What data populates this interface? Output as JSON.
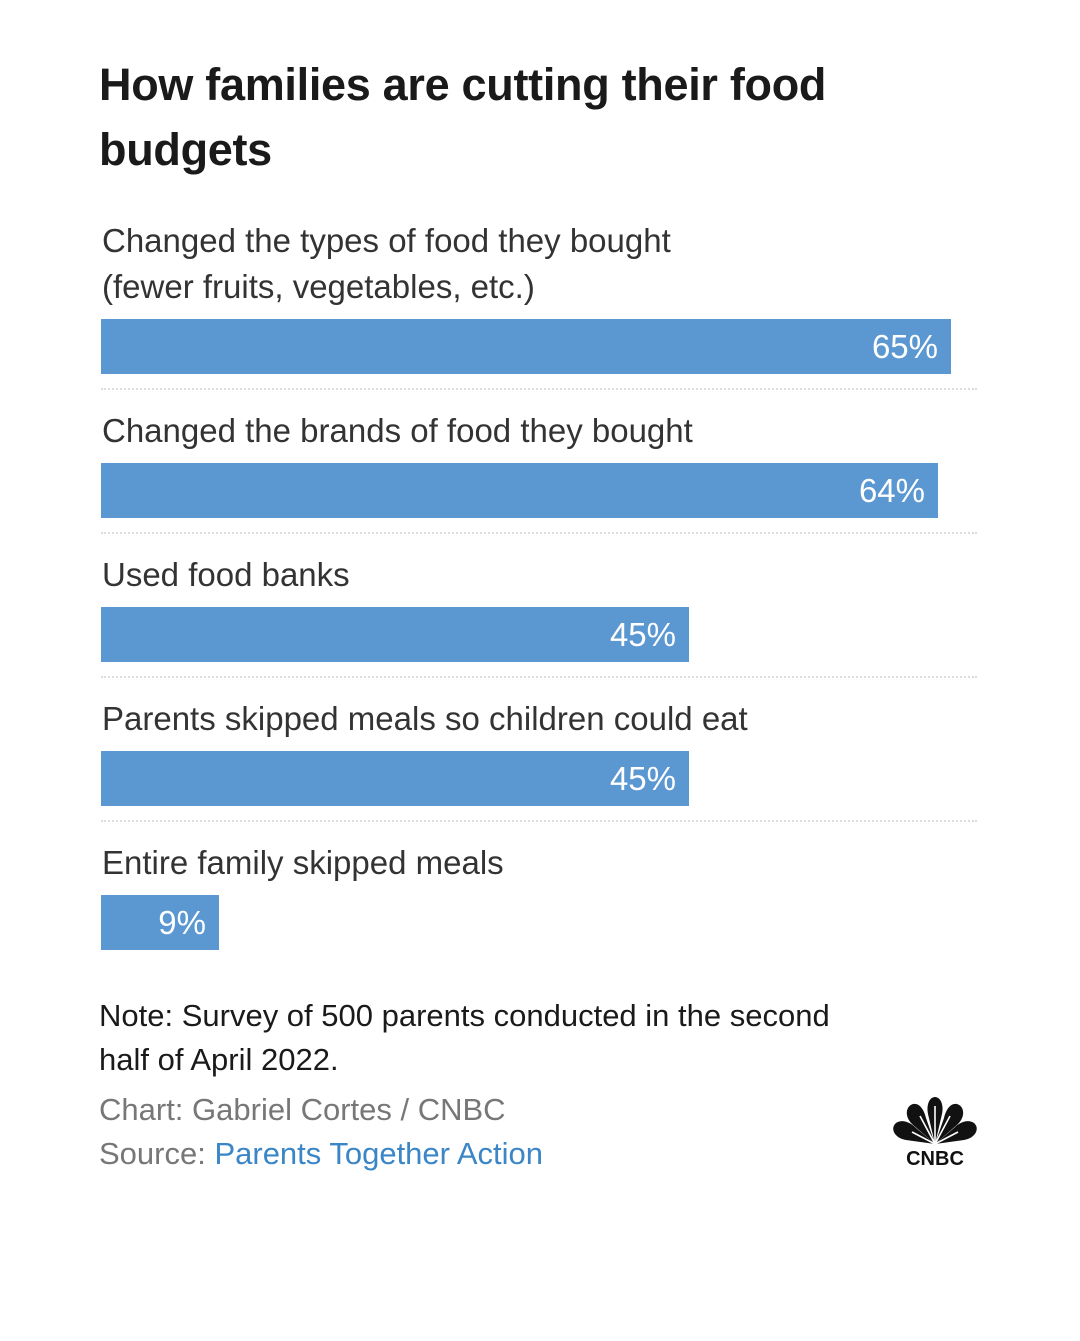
{
  "header": {
    "title": "How families are cutting their food budgets"
  },
  "chart_data": {
    "type": "bar",
    "orientation": "horizontal",
    "title": "How families are cutting their food budgets",
    "categories": [
      "Changed the types of food they bought (fewer fruits, vegetables, etc.)",
      "Changed the brands of food they bought",
      "Used food banks",
      "Parents skipped meals so children could eat",
      "Entire family skipped meals"
    ],
    "category_lines": [
      [
        "Changed the types of food they bought",
        "(fewer fruits, vegetables, etc.)"
      ],
      [
        "Changed the brands of food they bought"
      ],
      [
        "Used food banks"
      ],
      [
        "Parents skipped meals so children could eat"
      ],
      [
        "Entire family skipped meals"
      ]
    ],
    "values": [
      65,
      64,
      45,
      45,
      9
    ],
    "value_labels": [
      "65%",
      "64%",
      "45%",
      "45%",
      "9%"
    ],
    "unit": "%",
    "xlim": [
      0,
      65
    ],
    "xlabel": "",
    "ylabel": "",
    "grid": false,
    "legend": "none",
    "bar_color": "#5b97d1"
  },
  "footer": {
    "note": "Note: Survey of 500 parents conducted in the second half of April 2022.",
    "credit": "Chart: Gabriel Cortes / CNBC",
    "source_prefix": "Source: ",
    "source_link": "Parents Together Action",
    "source_link_color": "#3a86c6",
    "logo_text": "CNBC"
  }
}
